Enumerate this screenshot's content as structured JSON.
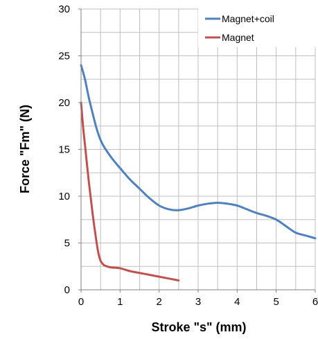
{
  "chart_data": {
    "type": "line",
    "xlabel": "Stroke \"s\" (mm)",
    "ylabel": "Force \"Fm\" (N)",
    "xlim": [
      0,
      6
    ],
    "ylim": [
      0,
      30
    ],
    "x_ticks": [
      0,
      1,
      2,
      3,
      4,
      5,
      6
    ],
    "y_ticks": [
      0,
      5,
      10,
      15,
      20,
      25,
      30
    ],
    "grid": true,
    "minor_grid_x": 0.5,
    "minor_grid_y": 2.5,
    "legend_position": "top-right",
    "series": [
      {
        "name": "Magnet+coil",
        "color": "#4f81bd",
        "x": [
          0,
          0.1,
          0.2,
          0.3,
          0.4,
          0.5,
          0.6,
          0.8,
          1.0,
          1.25,
          1.5,
          1.75,
          2.0,
          2.25,
          2.5,
          2.75,
          3.0,
          3.25,
          3.5,
          3.75,
          4.0,
          4.25,
          4.5,
          4.75,
          5.0,
          5.25,
          5.5,
          5.75,
          6.0
        ],
        "y": [
          24,
          22.5,
          20.5,
          18.8,
          17.2,
          16.0,
          15.2,
          14.0,
          13.0,
          11.8,
          10.8,
          9.8,
          9.0,
          8.6,
          8.5,
          8.7,
          9.0,
          9.2,
          9.3,
          9.2,
          9.0,
          8.6,
          8.2,
          7.9,
          7.5,
          6.8,
          6.1,
          5.8,
          5.5
        ]
      },
      {
        "name": "Magnet",
        "color": "#c0504d",
        "x": [
          0,
          0.05,
          0.1,
          0.2,
          0.3,
          0.4,
          0.45,
          0.5,
          0.55,
          0.6,
          0.75,
          1.0,
          1.25,
          1.5,
          1.75,
          2.0,
          2.25,
          2.5
        ],
        "y": [
          20,
          17.5,
          15.5,
          11.5,
          8.0,
          5.0,
          3.8,
          3.1,
          2.8,
          2.6,
          2.4,
          2.3,
          2.0,
          1.8,
          1.6,
          1.4,
          1.2,
          1.0
        ]
      }
    ]
  }
}
